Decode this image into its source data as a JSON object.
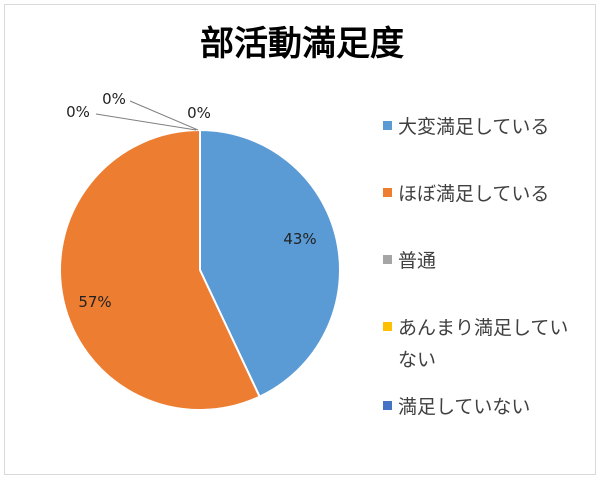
{
  "chart_data": {
    "type": "pie",
    "title": "部活動満足度",
    "categories": [
      "大変満足している",
      "ほぼ満足している",
      "普通",
      "あんまり満足していない",
      "満足していない"
    ],
    "values": [
      43,
      57,
      0,
      0,
      0
    ],
    "data_labels": [
      "43%",
      "57%",
      "0%",
      "0%",
      "0%"
    ],
    "colors": [
      "#5B9BD5",
      "#ED7D31",
      "#A5A5A5",
      "#FFC000",
      "#4472C4"
    ],
    "legend": {
      "position": "right",
      "entries": [
        {
          "lines": [
            "大変満足している"
          ]
        },
        {
          "lines": [
            "ほぼ満足している"
          ]
        },
        {
          "lines": [
            "普通"
          ]
        },
        {
          "lines": [
            "あんまり満足してい",
            "ない"
          ]
        },
        {
          "lines": [
            "満足していない"
          ]
        }
      ]
    }
  }
}
